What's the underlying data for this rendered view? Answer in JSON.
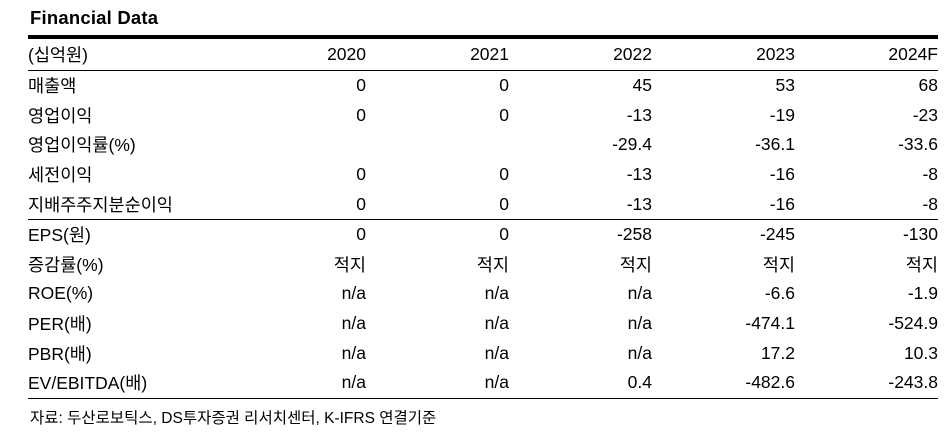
{
  "title": "Financial Data",
  "source_note": "자료: 두산로보틱스, DS투자증권 리서치센터, K-IFRS 연결기준",
  "colors": {
    "background": "#ffffff",
    "text": "#000000",
    "rule": "#000000"
  },
  "chart_data": {
    "type": "table",
    "title": "Financial Data",
    "unit_label": "(십억원)",
    "columns": [
      "(십억원)",
      "2020",
      "2021",
      "2022",
      "2023",
      "2024F"
    ],
    "rows": [
      {
        "label": "매출액",
        "values": [
          "0",
          "0",
          "45",
          "53",
          "68"
        ]
      },
      {
        "label": "영업이익",
        "values": [
          "0",
          "0",
          "-13",
          "-19",
          "-23"
        ]
      },
      {
        "label": "영업이익률(%)",
        "values": [
          "",
          "",
          "-29.4",
          "-36.1",
          "-33.6"
        ]
      },
      {
        "label": "세전이익",
        "values": [
          "0",
          "0",
          "-13",
          "-16",
          "-8"
        ]
      },
      {
        "label": "지배주주지분순이익",
        "values": [
          "0",
          "0",
          "-13",
          "-16",
          "-8"
        ]
      },
      {
        "label": "EPS(원)",
        "values": [
          "0",
          "0",
          "-258",
          "-245",
          "-130"
        ]
      },
      {
        "label": "증감률(%)",
        "values": [
          "적지",
          "적지",
          "적지",
          "적지",
          "적지"
        ]
      },
      {
        "label": "ROE(%)",
        "values": [
          "n/a",
          "n/a",
          "n/a",
          "-6.6",
          "-1.9"
        ]
      },
      {
        "label": "PER(배)",
        "values": [
          "n/a",
          "n/a",
          "n/a",
          "-474.1",
          "-524.9"
        ]
      },
      {
        "label": "PBR(배)",
        "values": [
          "n/a",
          "n/a",
          "n/a",
          "17.2",
          "10.3"
        ]
      },
      {
        "label": "EV/EBITDA(배)",
        "values": [
          "n/a",
          "n/a",
          "0.4",
          "-482.6",
          "-243.8"
        ]
      }
    ]
  }
}
